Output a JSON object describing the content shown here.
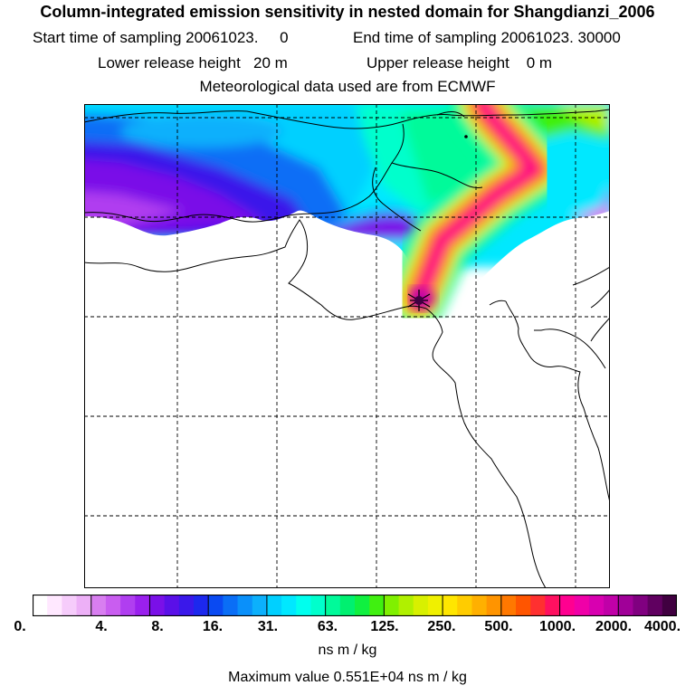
{
  "header": {
    "title": "Column-integrated emission sensitivity in nested domain for Shangdianzi_2006",
    "start_label": "Start time of sampling 20061023.     0",
    "end_label": "End time of sampling 20061023. 30000",
    "lower_label": "Lower release height   20 m",
    "upper_label": "Upper release height    0 m",
    "met_label": "Meteorological data used are from ECMWF"
  },
  "colorbar": {
    "labels": [
      "0.",
      "4.",
      "8.",
      "16.",
      "31.",
      "63.",
      "125.",
      "250.",
      "500.",
      "1000.",
      "2000.",
      "4000."
    ],
    "colors": [
      "#ffffff",
      "#ffe8ff",
      "#f6ccfb",
      "#edb0f7",
      "#d87ef0",
      "#c95df0",
      "#b03ef0",
      "#9a20ee",
      "#7a10e8",
      "#5a10e8",
      "#3a18ea",
      "#1c28ee",
      "#0a4af2",
      "#0a6ef6",
      "#0a90fa",
      "#0cb0fc",
      "#00d0ff",
      "#00e8ff",
      "#00ffee",
      "#00ffcc",
      "#00fa9a",
      "#00f070",
      "#10f040",
      "#40f010",
      "#80f000",
      "#b0f000",
      "#d8f000",
      "#f0f000",
      "#ffe600",
      "#ffcc00",
      "#ffb000",
      "#ff9400",
      "#ff7800",
      "#ff5500",
      "#ff3030",
      "#ff1060",
      "#ff0090",
      "#f000a8",
      "#d800b0",
      "#c000a8",
      "#a00098",
      "#800080",
      "#600060",
      "#400040"
    ]
  },
  "units": "ns m / kg",
  "max_value_label": "Maximum value  0.551E+04 ns m / kg",
  "map": {
    "grid_color": "#000000",
    "receptor_symbol": "star"
  }
}
